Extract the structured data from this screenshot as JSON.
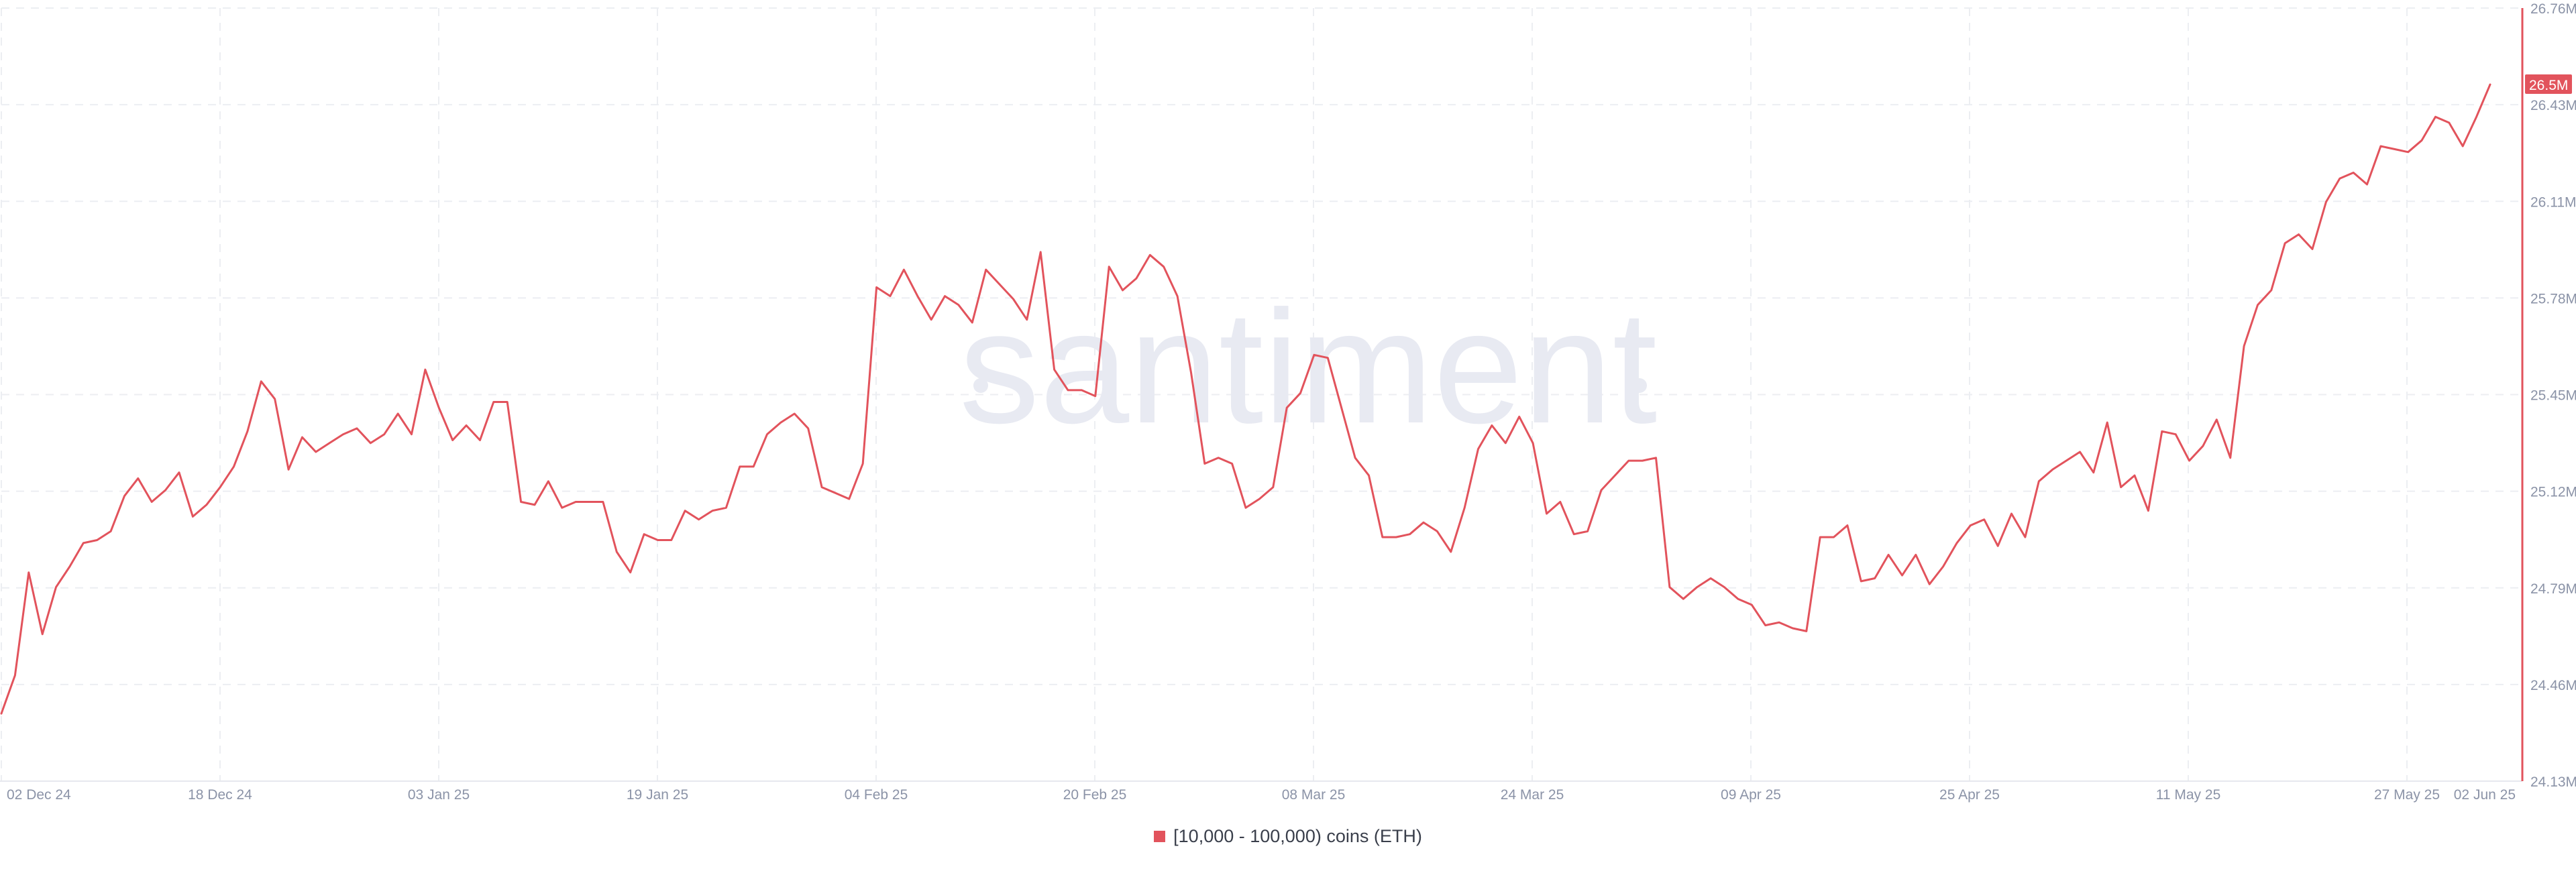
{
  "chart_data": {
    "type": "line",
    "watermark": "santiment",
    "legend_position": "bottom-center",
    "grid": true,
    "x_tick_labels": [
      "02 Dec 24",
      "18 Dec 24",
      "03 Jan 25",
      "19 Jan 25",
      "04 Feb 25",
      "20 Feb 25",
      "08 Mar 25",
      "24 Mar 25",
      "09 Apr 25",
      "25 Apr 25",
      "11 May 25",
      "27 May 25",
      "02 Jun 25"
    ],
    "y_tick_labels": [
      "24.13M",
      "24.46M",
      "24.79M",
      "25.12M",
      "25.45M",
      "25.78M",
      "26.11M",
      "26.43M",
      "26.76M"
    ],
    "ylim": [
      24.13,
      26.76
    ],
    "y_unit": "M",
    "current_value_label": "26.5M",
    "current_value": 26.5,
    "series": [
      {
        "name": "[10,000 - 100,000) coins (ETH)",
        "color": "#e2535c",
        "values": [
          24.36,
          24.49,
          24.84,
          24.63,
          24.79,
          24.86,
          24.94,
          24.95,
          24.98,
          25.1,
          25.16,
          25.08,
          25.12,
          25.18,
          25.03,
          25.07,
          25.13,
          25.2,
          25.32,
          25.49,
          25.43,
          25.19,
          25.3,
          25.25,
          25.28,
          25.31,
          25.33,
          25.28,
          25.31,
          25.38,
          25.31,
          25.53,
          25.4,
          25.29,
          25.34,
          25.29,
          25.42,
          25.42,
          25.08,
          25.07,
          25.15,
          25.06,
          25.08,
          25.08,
          25.08,
          24.91,
          24.84,
          24.97,
          24.95,
          24.95,
          25.05,
          25.02,
          25.05,
          25.06,
          25.2,
          25.2,
          25.31,
          25.35,
          25.38,
          25.33,
          25.13,
          25.11,
          25.09,
          25.21,
          25.81,
          25.78,
          25.87,
          25.78,
          25.7,
          25.78,
          25.75,
          25.69,
          25.87,
          25.82,
          25.77,
          25.7,
          25.93,
          25.53,
          25.46,
          25.46,
          25.44,
          25.88,
          25.8,
          25.84,
          25.92,
          25.88,
          25.78,
          25.52,
          25.21,
          25.23,
          25.21,
          25.06,
          25.09,
          25.13,
          25.4,
          25.45,
          25.58,
          25.57,
          25.4,
          25.23,
          25.17,
          24.96,
          24.96,
          24.97,
          25.01,
          24.98,
          24.91,
          25.06,
          25.26,
          25.34,
          25.28,
          25.37,
          25.28,
          25.04,
          25.08,
          24.97,
          24.98,
          25.12,
          25.17,
          25.22,
          25.22,
          25.23,
          24.79,
          24.75,
          24.79,
          24.82,
          24.79,
          24.75,
          24.73,
          24.66,
          24.67,
          24.65,
          24.64,
          24.96,
          24.96,
          25.0,
          24.81,
          24.82,
          24.9,
          24.83,
          24.9,
          24.8,
          24.86,
          24.94,
          25.0,
          25.02,
          24.93,
          25.04,
          24.96,
          25.15,
          25.19,
          25.22,
          25.25,
          25.18,
          25.35,
          25.13,
          25.17,
          25.05,
          25.32,
          25.31,
          25.22,
          25.27,
          25.36,
          25.23,
          25.61,
          25.75,
          25.8,
          25.96,
          25.99,
          25.94,
          26.1,
          26.18,
          26.2,
          26.16,
          26.29,
          26.28,
          26.27,
          26.31,
          26.39,
          26.37,
          26.29,
          26.39,
          26.5
        ]
      }
    ]
  }
}
